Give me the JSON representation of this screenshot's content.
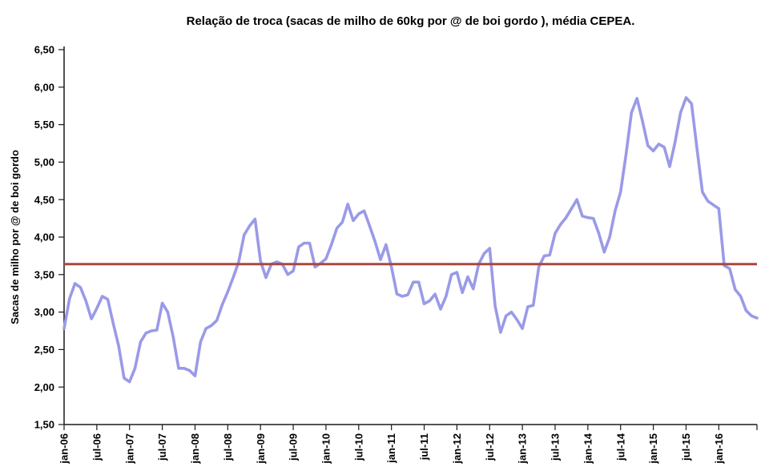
{
  "title": "Relação de troca (sacas de milho de 60kg por @ de boi gordo ), média CEPEA.",
  "y_axis_label": "Sacas de milho por @ de boi gordo",
  "chart_data": {
    "type": "line",
    "title": "Relação de troca (sacas de milho de 60kg por @ de boi gordo ), média CEPEA.",
    "xlabel": "",
    "ylabel": "Sacas de milho por @ de boi gordo",
    "ylim": [
      1.5,
      6.5
    ],
    "y_tick_step": 0.5,
    "y_tick_labels": [
      "1,50",
      "2,00",
      "2,50",
      "3,00",
      "3,50",
      "4,00",
      "4,50",
      "5,00",
      "5,50",
      "6,00",
      "6,50"
    ],
    "x_tick_every": 6,
    "x_tick_labels": [
      "jan-06",
      "jul-06",
      "jan-07",
      "jul-07",
      "jan-08",
      "jul-08",
      "jan-09",
      "jul-09",
      "jan-10",
      "jul-10",
      "jan-11",
      "jul-11",
      "jan-12",
      "jul-12",
      "jan-13",
      "jul-13",
      "jan-14",
      "jul-14",
      "jan-15",
      "jul-15",
      "jan-16"
    ],
    "grid": false,
    "legend": "none",
    "line_color": "#9A9AE8",
    "reference_line": {
      "value": 3.64,
      "color": "#A94742"
    },
    "x": [
      "jan-06",
      "fev-06",
      "mar-06",
      "abr-06",
      "mai-06",
      "jun-06",
      "jul-06",
      "ago-06",
      "set-06",
      "out-06",
      "nov-06",
      "dez-06",
      "jan-07",
      "fev-07",
      "mar-07",
      "abr-07",
      "mai-07",
      "jun-07",
      "jul-07",
      "ago-07",
      "set-07",
      "out-07",
      "nov-07",
      "dez-07",
      "jan-08",
      "fev-08",
      "mar-08",
      "abr-08",
      "mai-08",
      "jun-08",
      "jul-08",
      "ago-08",
      "set-08",
      "out-08",
      "nov-08",
      "dez-08",
      "jan-09",
      "fev-09",
      "mar-09",
      "abr-09",
      "mai-09",
      "jun-09",
      "jul-09",
      "ago-09",
      "set-09",
      "out-09",
      "nov-09",
      "dez-09",
      "jan-10",
      "fev-10",
      "mar-10",
      "abr-10",
      "mai-10",
      "jun-10",
      "jul-10",
      "ago-10",
      "set-10",
      "out-10",
      "nov-10",
      "dez-10",
      "jan-11",
      "fev-11",
      "mar-11",
      "abr-11",
      "mai-11",
      "jun-11",
      "jul-11",
      "ago-11",
      "set-11",
      "out-11",
      "nov-11",
      "dez-11",
      "jan-12",
      "fev-12",
      "mar-12",
      "abr-12",
      "mai-12",
      "jun-12",
      "jul-12",
      "ago-12",
      "set-12",
      "out-12",
      "nov-12",
      "dez-12",
      "jan-13",
      "fev-13",
      "mar-13",
      "abr-13",
      "mai-13",
      "jun-13",
      "jul-13",
      "ago-13",
      "set-13",
      "out-13",
      "nov-13",
      "dez-13",
      "jan-14",
      "fev-14",
      "mar-14",
      "abr-14",
      "mai-14",
      "jun-14",
      "jul-14",
      "ago-14",
      "set-14",
      "out-14",
      "nov-14",
      "dez-14",
      "jan-15",
      "fev-15",
      "mar-15",
      "abr-15",
      "mai-15",
      "jun-15",
      "jul-15",
      "ago-15",
      "set-15",
      "out-15",
      "nov-15",
      "dez-15",
      "jan-16",
      "fev-16",
      "mar-16",
      "abr-16",
      "mai-16",
      "jun-16",
      "jul-16",
      "ago-16"
    ],
    "values": [
      2.78,
      3.18,
      3.38,
      3.33,
      3.15,
      2.91,
      3.05,
      3.21,
      3.17,
      2.85,
      2.55,
      2.12,
      2.07,
      2.25,
      2.6,
      2.72,
      2.75,
      2.76,
      3.12,
      3.0,
      2.67,
      2.25,
      2.25,
      2.22,
      2.15,
      2.6,
      2.78,
      2.82,
      2.89,
      3.1,
      3.27,
      3.46,
      3.67,
      4.03,
      4.15,
      4.24,
      3.68,
      3.46,
      3.64,
      3.67,
      3.64,
      3.5,
      3.55,
      3.87,
      3.92,
      3.92,
      3.6,
      3.65,
      3.71,
      3.9,
      4.12,
      4.2,
      4.44,
      4.22,
      4.31,
      4.35,
      4.15,
      3.94,
      3.7,
      3.9,
      3.6,
      3.24,
      3.21,
      3.23,
      3.4,
      3.4,
      3.11,
      3.15,
      3.24,
      3.04,
      3.21,
      3.5,
      3.53,
      3.26,
      3.47,
      3.31,
      3.64,
      3.78,
      3.85,
      3.08,
      2.73,
      2.95,
      3.0,
      2.9,
      2.78,
      3.07,
      3.09,
      3.6,
      3.75,
      3.76,
      4.05,
      4.17,
      4.26,
      4.38,
      4.5,
      4.28,
      4.26,
      4.25,
      4.05,
      3.8,
      4.0,
      4.35,
      4.6,
      5.1,
      5.66,
      5.85,
      5.55,
      5.22,
      5.15,
      5.24,
      5.2,
      4.94,
      5.27,
      5.66,
      5.86,
      5.78,
      5.18,
      4.6,
      4.48,
      4.43,
      4.38,
      3.62,
      3.58,
      3.3,
      3.21,
      3.02,
      2.95,
      2.92
    ]
  }
}
